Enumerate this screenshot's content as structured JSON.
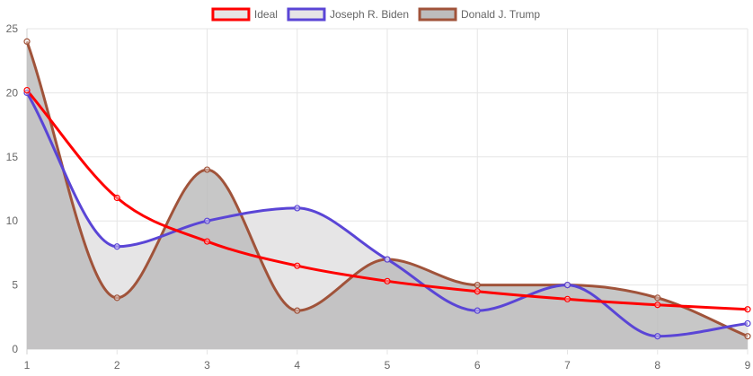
{
  "chart_data": {
    "type": "line",
    "title": "",
    "xlabel": "",
    "ylabel": "",
    "x": [
      1,
      2,
      3,
      4,
      5,
      6,
      7,
      8,
      9
    ],
    "xlim": [
      1,
      9
    ],
    "ylim": [
      0,
      25
    ],
    "yticks": [
      0,
      5,
      10,
      15,
      20,
      25
    ],
    "grid": true,
    "legend_position": "top",
    "series": [
      {
        "name": "Ideal",
        "color": "#ff0000",
        "fill": "none",
        "values": [
          20.2,
          11.8,
          8.4,
          6.5,
          5.3,
          4.5,
          3.9,
          3.45,
          3.1
        ]
      },
      {
        "name": "Joseph R. Biden",
        "color": "#5a45d6",
        "fill": "#e6e5e6",
        "values": [
          20,
          8,
          10,
          11,
          7,
          3,
          5,
          1,
          2
        ]
      },
      {
        "name": "Donald J. Trump",
        "color": "#a0533a",
        "fill": "#bdbdbd",
        "values": [
          24,
          4,
          14,
          3,
          7,
          5,
          5,
          4,
          1
        ]
      }
    ]
  }
}
